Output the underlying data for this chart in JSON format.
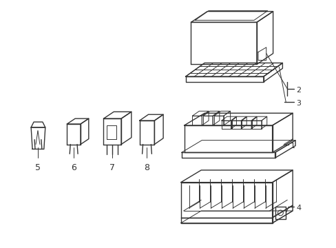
{
  "background_color": "#ffffff",
  "line_color": "#333333",
  "line_width": 1.0,
  "thin_line": 0.7,
  "label_color": "#222222",
  "label_fontsize": 8,
  "fig_width": 4.89,
  "fig_height": 3.6,
  "dpi": 100
}
